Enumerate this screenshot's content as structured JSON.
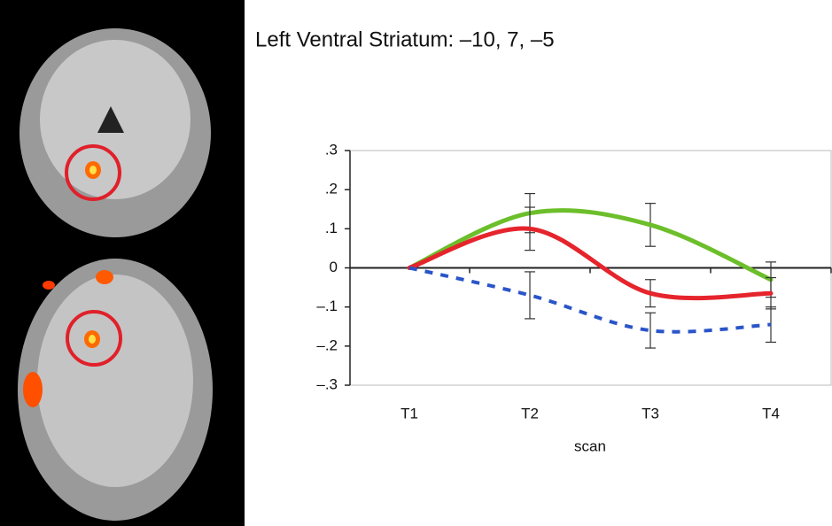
{
  "chart_data": {
    "type": "line",
    "title": "Left Ventral Striatum: –10, 7, –5",
    "xlabel": "scan",
    "categories": [
      "T1",
      "T2",
      "T3",
      "T4"
    ],
    "series": [
      {
        "color": "#6cbf2a",
        "dash": false,
        "values": [
          0,
          0.14,
          0.11,
          -0.03
        ],
        "errors": [
          null,
          0.05,
          0.055,
          0.045
        ]
      },
      {
        "color": "#e5242c",
        "dash": false,
        "values": [
          0,
          0.1,
          -0.065,
          -0.065
        ],
        "errors": [
          null,
          0.055,
          0.035,
          0.04
        ]
      },
      {
        "color": "#2a55c8",
        "dash": true,
        "values": [
          0,
          -0.07,
          -0.16,
          -0.145
        ],
        "errors": [
          null,
          0.06,
          0.045,
          0.045
        ]
      }
    ],
    "ylim": [
      -0.3,
      0.3
    ],
    "yticks": [
      {
        "value": 0.3,
        "label": ".3"
      },
      {
        "value": 0.2,
        "label": ".2"
      },
      {
        "value": 0.1,
        "label": ".1"
      },
      0,
      {
        "value": -0.1,
        "label": "–.1"
      },
      {
        "value": -0.2,
        "label": "–.2"
      },
      {
        "value": -0.3,
        "label": "–.3"
      }
    ]
  }
}
